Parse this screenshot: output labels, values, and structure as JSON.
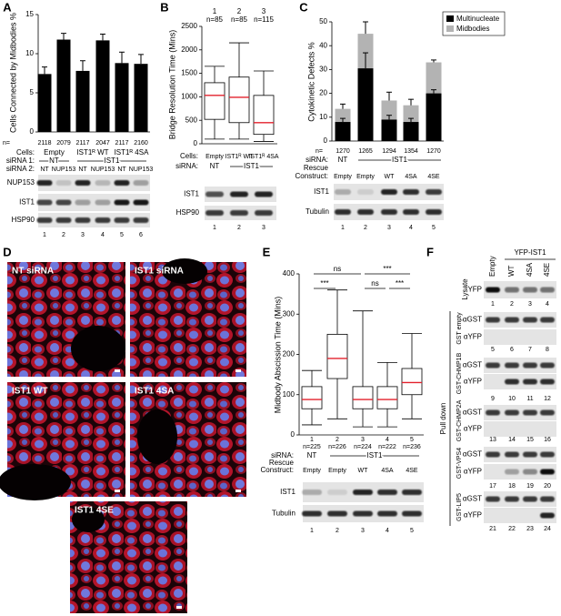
{
  "chart_data": [
    {
      "type": "bar",
      "panel": "A",
      "ylabel": "Cells Connected by Midbodies %",
      "ylim": [
        0,
        15
      ],
      "yticks": [
        0,
        5,
        10,
        15
      ],
      "color": "#000000",
      "values": [
        7.4,
        11.8,
        7.8,
        11.7,
        8.8,
        8.7
      ],
      "errors": [
        0.9,
        0.8,
        1.3,
        0.8,
        1.4,
        1.2
      ],
      "n_label": "n=",
      "n": [
        2118,
        2079,
        2117,
        2047,
        2117,
        2160
      ],
      "cells_label": "Cells:",
      "cells": [
        "Empty",
        "IST1ᴿ WT",
        "IST1ᴿ 4SA"
      ],
      "sirna1_label": "siRNA 1:",
      "sirna1": [
        "NT",
        "IST1"
      ],
      "sirna2_label": "siRNA 2:",
      "sirna2": [
        "NT",
        "NUP153",
        "NT",
        "NUP153",
        "NT",
        "NUP153"
      ],
      "blots": [
        "NUP153",
        "IST1",
        "HSP90"
      ],
      "lanes": [
        1,
        2,
        3,
        4,
        5,
        6
      ]
    },
    {
      "type": "box",
      "panel": "B",
      "ylabel": "Bridge Resolution Time (Mins)",
      "ylim": [
        0,
        2500
      ],
      "yticks": [
        0,
        500,
        1000,
        1500,
        2000,
        2500
      ],
      "median_color": "#e3202c",
      "boxes": [
        {
          "whislo": 100,
          "q1": 520,
          "median": 1030,
          "q3": 1300,
          "whishi": 1650
        },
        {
          "whislo": 100,
          "q1": 450,
          "median": 990,
          "q3": 1420,
          "whishi": 2150
        },
        {
          "whislo": 50,
          "q1": 200,
          "median": 450,
          "q3": 1030,
          "whishi": 1550
        }
      ],
      "box_labels": [
        "1",
        "2",
        "3"
      ],
      "n_labels": [
        "n=85",
        "n=85",
        "n=115"
      ],
      "cells_label": "Cells:",
      "cells": [
        "Empty",
        "IST1ᴿ WT",
        "IST1ᴿ 4SA"
      ],
      "sirna_label": "siRNA:",
      "sirna": [
        "NT",
        "IST1"
      ],
      "blots": [
        "IST1",
        "HSP90"
      ],
      "lanes": [
        1,
        2,
        3
      ]
    },
    {
      "type": "stacked_bar",
      "panel": "C",
      "ylabel": "Cytokinetic Defects %",
      "ylim": [
        0,
        50
      ],
      "yticks": [
        0,
        10,
        20,
        30,
        40,
        50
      ],
      "series": [
        {
          "name": "Multinucleate",
          "color": "#000000",
          "values": [
            8,
            30.5,
            9,
            8,
            20
          ],
          "errors": [
            1.5,
            6.5,
            1.8,
            1.5,
            1.5
          ]
        },
        {
          "name": "Midbodies",
          "color": "#b3b3b3",
          "values": [
            5.5,
            14.5,
            8,
            7,
            13
          ],
          "errors": [
            2,
            5,
            3.5,
            2.5,
            1
          ]
        }
      ],
      "n_label": "n=",
      "n": [
        1270,
        1265,
        1294,
        1354,
        1270
      ],
      "sirna_label": "siRNA:",
      "sirna": [
        "NT",
        "IST1"
      ],
      "rescue_label": [
        "Rescue",
        "Construct:"
      ],
      "rescue": [
        "Empty",
        "Empty",
        "WT",
        "4SA",
        "4SE"
      ],
      "blots": [
        "IST1",
        "Tubulin"
      ],
      "lanes": [
        1,
        2,
        3,
        4,
        5
      ]
    },
    {
      "type": "box",
      "panel": "E",
      "ylabel": "Midbody Abscission Time (Mins)",
      "ylim": [
        0,
        400
      ],
      "yticks": [
        0,
        100,
        200,
        300,
        400
      ],
      "median_color": "#e3202c",
      "boxes": [
        {
          "whislo": 25,
          "q1": 65,
          "median": 88,
          "q3": 120,
          "whishi": 160
        },
        {
          "whislo": 40,
          "q1": 140,
          "median": 190,
          "q3": 250,
          "whishi": 360
        },
        {
          "whislo": 20,
          "q1": 65,
          "median": 88,
          "q3": 120,
          "whishi": 308
        },
        {
          "whislo": 20,
          "q1": 65,
          "median": 88,
          "q3": 120,
          "whishi": 180
        },
        {
          "whislo": 40,
          "q1": 100,
          "median": 130,
          "q3": 165,
          "whishi": 252
        }
      ],
      "box_labels": [
        "1",
        "2",
        "3",
        "4",
        "5"
      ],
      "n_labels": [
        "n=225",
        "n=226",
        "n=224",
        "n=222",
        "n=236"
      ],
      "significance": [
        "ns",
        "***",
        "***",
        "ns",
        "***"
      ],
      "sirna_label": "siRNA:",
      "sirna": [
        "NT",
        "IST1"
      ],
      "rescue_label": [
        "Rescue",
        "Construct:"
      ],
      "rescue": [
        "Empty",
        "Empty",
        "WT",
        "4SA",
        "4SE"
      ],
      "blots": [
        "IST1",
        "Tubulin"
      ],
      "lanes": [
        1,
        2,
        3,
        4,
        5
      ]
    }
  ],
  "figure_d": {
    "panel": "D",
    "images": [
      "NT siRNA",
      "IST1 siRNA",
      "IST1 WT",
      "IST1 4SA",
      "IST1 4SE"
    ]
  },
  "figure_f": {
    "panel": "F",
    "header": "YFP-IST1",
    "columns": [
      "Empty",
      "WT",
      "4SA",
      "4SE"
    ],
    "lysate_label": "Lysate",
    "lysate_row": "YFP",
    "lysate_lanes": [
      1,
      2,
      3,
      4
    ],
    "pulldown_label": "Pull down",
    "groups": [
      {
        "name": "GST empty",
        "rows": [
          "αGST",
          "αYFP"
        ],
        "lanes": [
          5,
          6,
          7,
          8
        ]
      },
      {
        "name": "GST-CHMP1B",
        "rows": [
          "αGST",
          "αYFP"
        ],
        "lanes": [
          9,
          10,
          11,
          12
        ]
      },
      {
        "name": "GST-CHMP2A",
        "rows": [
          "αGST",
          "αYFP"
        ],
        "lanes": [
          13,
          14,
          15,
          16
        ]
      },
      {
        "name": "GST-VPS4",
        "rows": [
          "αGST",
          "αYFP"
        ],
        "lanes": [
          17,
          18,
          19,
          20
        ]
      },
      {
        "name": "GST-LIP5",
        "rows": [
          "αGST",
          "αYFP"
        ],
        "lanes": [
          21,
          22,
          23,
          24
        ]
      }
    ]
  }
}
